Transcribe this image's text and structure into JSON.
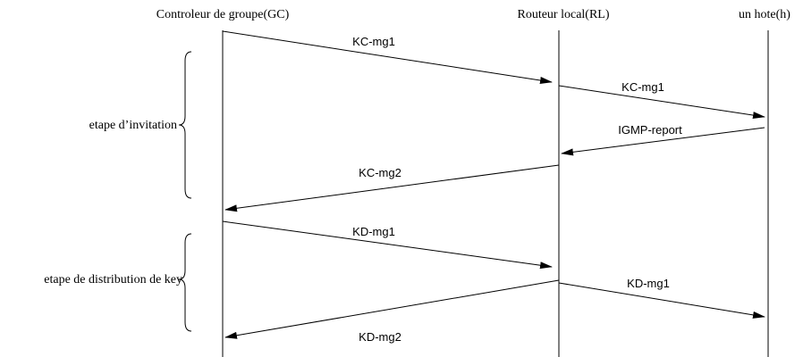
{
  "participants": {
    "gc": "Controleur de groupe(GC)",
    "rl": "Routeur local(RL)",
    "host": "un hote(h)"
  },
  "phases": {
    "invitation": "etape d’invitation",
    "distribution": "etape de distribution de key"
  },
  "messages": [
    {
      "from": "gc",
      "to": "rl",
      "label": "KC-mg1"
    },
    {
      "from": "rl",
      "to": "host",
      "label": "KC-mg1"
    },
    {
      "from": "host",
      "to": "rl",
      "label": "IGMP-report"
    },
    {
      "from": "rl",
      "to": "gc",
      "label": "KC-mg2"
    },
    {
      "from": "gc",
      "to": "rl",
      "label": "KD-mg1"
    },
    {
      "from": "rl",
      "to": "host",
      "label": "KD-mg1"
    },
    {
      "from": "rl",
      "to": "gc",
      "label": "KD-mg2"
    }
  ],
  "colors": {
    "line": "#000000",
    "background": "#ffffff"
  }
}
